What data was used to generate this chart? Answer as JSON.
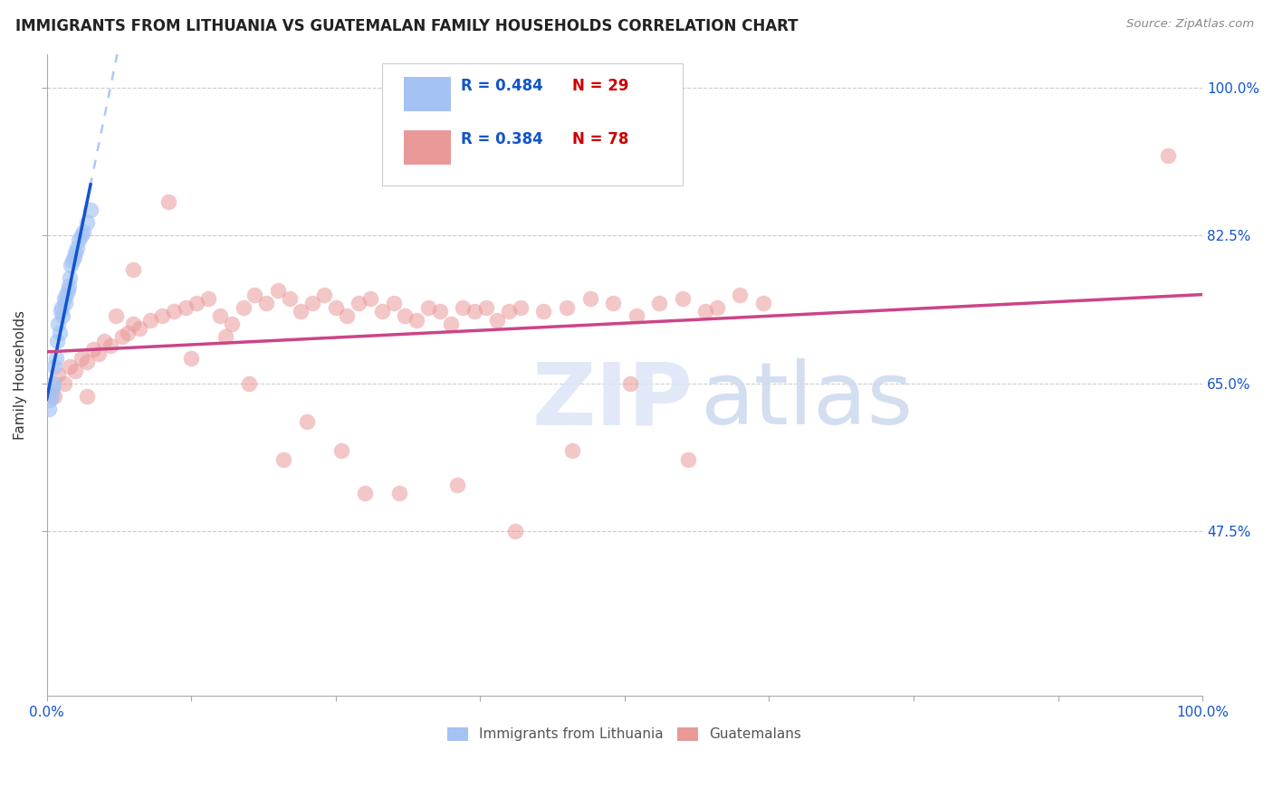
{
  "title": "IMMIGRANTS FROM LITHUANIA VS GUATEMALAN FAMILY HOUSEHOLDS CORRELATION CHART",
  "source_text": "Source: ZipAtlas.com",
  "ylabel": "Family Households",
  "legend_r_blue": "R = 0.484",
  "legend_n_blue": "N = 29",
  "legend_r_pink": "R = 0.384",
  "legend_n_pink": "N = 78",
  "legend_label_blue": "Immigrants from Lithuania",
  "legend_label_pink": "Guatemalans",
  "blue_fill": "#a4c2f4",
  "pink_fill": "#ea9999",
  "blue_scatter_edge": "#6d9eeb",
  "pink_scatter_edge": "#e06666",
  "blue_line_color": "#1155cc",
  "pink_line_color": "#cc4488",
  "dashed_line_color": "#a4c2f4",
  "xmin": 0.0,
  "xmax": 100.0,
  "ymin": 28.0,
  "ymax": 104.0,
  "ytick_positions": [
    47.5,
    65.0,
    82.5,
    100.0
  ],
  "xtick_positions": [
    0,
    12.5,
    25.0,
    37.5,
    50.0,
    62.5,
    75.0,
    87.5,
    100.0
  ],
  "blue_x": [
    0.3,
    0.5,
    0.6,
    0.7,
    0.8,
    0.9,
    1.0,
    1.1,
    1.2,
    1.3,
    1.4,
    1.5,
    1.6,
    1.8,
    1.9,
    2.0,
    2.1,
    2.2,
    2.4,
    2.5,
    2.8,
    3.0,
    3.2,
    3.5,
    0.2,
    0.4,
    1.7,
    2.6,
    3.8
  ],
  "blue_y": [
    63.0,
    64.5,
    65.0,
    67.0,
    68.0,
    70.0,
    72.0,
    71.0,
    73.5,
    74.0,
    73.0,
    75.0,
    74.5,
    76.0,
    76.5,
    77.5,
    79.0,
    79.5,
    80.0,
    80.5,
    82.0,
    82.5,
    83.0,
    84.0,
    62.0,
    63.5,
    75.5,
    81.0,
    85.5
  ],
  "pink_x": [
    0.4,
    0.7,
    1.0,
    1.5,
    2.0,
    2.5,
    3.0,
    3.5,
    4.0,
    4.5,
    5.0,
    5.5,
    6.5,
    7.0,
    7.5,
    8.0,
    9.0,
    10.0,
    11.0,
    12.0,
    13.0,
    14.0,
    15.0,
    16.0,
    17.0,
    18.0,
    19.0,
    20.0,
    21.0,
    22.0,
    23.0,
    24.0,
    25.0,
    26.0,
    27.0,
    28.0,
    29.0,
    30.0,
    31.0,
    32.0,
    33.0,
    34.0,
    35.0,
    36.0,
    37.0,
    38.0,
    39.0,
    40.0,
    41.0,
    43.0,
    45.0,
    47.0,
    49.0,
    51.0,
    53.0,
    55.0,
    57.0,
    58.0,
    60.0,
    62.0,
    6.0,
    10.5,
    15.5,
    20.5,
    25.5,
    30.5,
    35.5,
    40.5,
    45.5,
    50.5,
    55.5,
    3.5,
    7.5,
    12.5,
    17.5,
    22.5,
    27.5,
    97.0
  ],
  "pink_y": [
    64.0,
    63.5,
    66.0,
    65.0,
    67.0,
    66.5,
    68.0,
    67.5,
    69.0,
    68.5,
    70.0,
    69.5,
    70.5,
    71.0,
    72.0,
    71.5,
    72.5,
    73.0,
    73.5,
    74.0,
    74.5,
    75.0,
    73.0,
    72.0,
    74.0,
    75.5,
    74.5,
    76.0,
    75.0,
    73.5,
    74.5,
    75.5,
    74.0,
    73.0,
    74.5,
    75.0,
    73.5,
    74.5,
    73.0,
    72.5,
    74.0,
    73.5,
    72.0,
    74.0,
    73.5,
    74.0,
    72.5,
    73.5,
    74.0,
    73.5,
    74.0,
    75.0,
    74.5,
    73.0,
    74.5,
    75.0,
    73.5,
    74.0,
    75.5,
    74.5,
    73.0,
    86.5,
    70.5,
    56.0,
    57.0,
    52.0,
    53.0,
    47.5,
    57.0,
    65.0,
    56.0,
    63.5,
    78.5,
    68.0,
    65.0,
    60.5,
    52.0,
    92.0
  ]
}
